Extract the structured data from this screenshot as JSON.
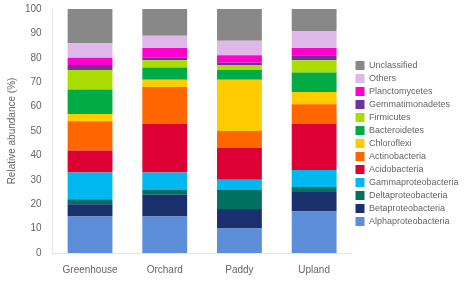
{
  "chart_data": {
    "type": "bar",
    "stacked": true,
    "categories": [
      "Greenhouse",
      "Orchard",
      "Paddy",
      "Upland"
    ],
    "ylabel": "Relative abundance (%)",
    "ylim": [
      0,
      100
    ],
    "yticks": [
      0,
      10,
      20,
      30,
      40,
      50,
      60,
      70,
      80,
      90,
      100
    ],
    "grid": false,
    "legend": "right",
    "series": [
      {
        "name": "Alphaproteobacteria",
        "color": "#5b8dd9",
        "values": [
          15,
          15,
          10,
          17
        ]
      },
      {
        "name": "Betaproteobacteria",
        "color": "#1a2f6e",
        "values": [
          5,
          9,
          8,
          8
        ]
      },
      {
        "name": "Deltaproteobacteria",
        "color": "#007060",
        "values": [
          2,
          2,
          8,
          2
        ]
      },
      {
        "name": "Gammaproteobacteria",
        "color": "#00b8f0",
        "values": [
          11,
          7,
          4,
          7
        ]
      },
      {
        "name": "Acidobacteria",
        "color": "#dd0033",
        "values": [
          9,
          20,
          13,
          19
        ]
      },
      {
        "name": "Actinobacteria",
        "color": "#ff6600",
        "values": [
          12,
          15,
          7,
          8
        ]
      },
      {
        "name": "Chloroflexi",
        "color": "#ffcc00",
        "values": [
          3,
          3,
          21,
          5
        ]
      },
      {
        "name": "Bacteroidetes",
        "color": "#00aa44",
        "values": [
          10,
          5,
          4,
          8
        ]
      },
      {
        "name": "Firmicutes",
        "color": "#aadd00",
        "values": [
          8,
          3,
          2,
          5
        ]
      },
      {
        "name": "Gemmatimonadetes",
        "color": "#7030a0",
        "values": [
          2,
          1,
          1,
          2
        ]
      },
      {
        "name": "Planctomycetes",
        "color": "#ff00cc",
        "values": [
          3,
          4,
          3,
          3
        ]
      },
      {
        "name": "Others",
        "color": "#ddb8e8",
        "values": [
          6,
          5,
          6,
          7
        ]
      },
      {
        "name": "Unclassified",
        "color": "#888888",
        "values": [
          14,
          11,
          13,
          9
        ]
      }
    ]
  }
}
